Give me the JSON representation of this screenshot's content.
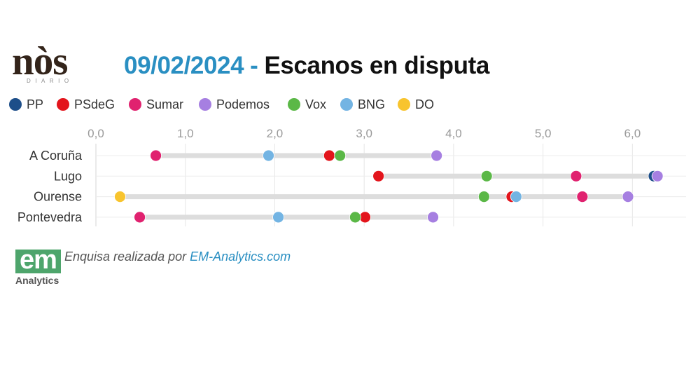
{
  "header": {
    "logo_wordmark": "nòs",
    "logo_subtitle": "DIARIO",
    "logo_color": "#33241a"
  },
  "chart_data": {
    "type": "scatter",
    "title_date": "09/02/2024",
    "title_separator": "-",
    "title": "Escanos en disputa",
    "title_accent_color": "#2a8fc2",
    "categories": [
      "A Coruña",
      "Lugo",
      "Ourense",
      "Pontevedra"
    ],
    "xlim": [
      0,
      6.6
    ],
    "x_ticks": [
      0,
      1,
      2,
      3,
      4,
      5,
      6
    ],
    "x_tick_labels": [
      "0,0",
      "1,0",
      "2,0",
      "3,0",
      "4,0",
      "5,0",
      "6,0"
    ],
    "grid": true,
    "legend_position": "top",
    "range_bar_color": "#dddddd",
    "series": [
      {
        "name": "PP",
        "color": "#1d4e89",
        "values": [
          null,
          6.24,
          null,
          null
        ]
      },
      {
        "name": "PSdeG",
        "color": "#e3151c",
        "values": [
          2.61,
          3.16,
          4.65,
          3.01
        ]
      },
      {
        "name": "Sumar",
        "color": "#e0226f",
        "values": [
          0.67,
          5.37,
          5.44,
          0.49
        ]
      },
      {
        "name": "Podemos",
        "color": "#a67fe1",
        "values": [
          3.81,
          6.28,
          5.95,
          3.77
        ]
      },
      {
        "name": "Vox",
        "color": "#5bb847",
        "values": [
          2.73,
          4.37,
          4.34,
          2.9
        ]
      },
      {
        "name": "BNG",
        "color": "#73b4e3",
        "values": [
          1.93,
          null,
          4.7,
          2.04
        ]
      },
      {
        "name": "DO",
        "color": "#f8c42e",
        "values": [
          null,
          null,
          0.27,
          null
        ]
      }
    ]
  },
  "footer": {
    "source_logo_text": "em",
    "source_logo_subtitle": "Analytics",
    "source_logo_color": "#4ea56c",
    "credit_prefix": "Enquisa realizada por",
    "credit_link": "EM-Analytics.com",
    "credit_link_color": "#2a8fc2"
  }
}
